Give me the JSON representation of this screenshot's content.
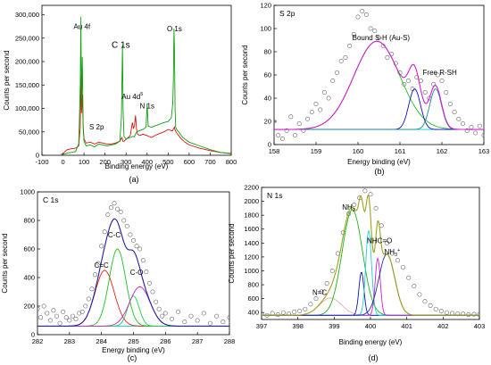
{
  "chart_data": [
    {
      "panel_label": "(a)",
      "type": "line",
      "title": "",
      "xlabel": "Binding energy (eV)",
      "ylabel": "Counts per second",
      "xlim": [
        -100,
        800
      ],
      "ylim": [
        0,
        320000
      ],
      "xticks": [
        "-100",
        "0",
        "100",
        "200",
        "300",
        "400",
        "500",
        "600",
        "700",
        "800"
      ],
      "yticks": [
        "0",
        "50,000",
        "100,000",
        "150,000",
        "200,000",
        "250,000",
        "300,000"
      ],
      "grid": false,
      "annotations": [
        {
          "text": "Au 4f",
          "x": 90,
          "y": 270000
        },
        {
          "text": "C 1s",
          "x": 275,
          "y": 230000
        },
        {
          "text": "Au 4d",
          "x": 330,
          "y": 120000,
          "sup": "5"
        },
        {
          "text": "N 1s",
          "x": 400,
          "y": 100000
        },
        {
          "text": "S 2p",
          "x": 160,
          "y": 55000
        },
        {
          "text": "O 1s",
          "x": 530,
          "y": 265000
        }
      ],
      "series": [
        {
          "color": "#e01010",
          "x": [
            -10,
            0,
            10,
            20,
            40,
            60,
            75,
            82,
            85,
            88,
            92,
            96,
            100,
            110,
            130,
            150,
            170,
            190,
            210,
            230,
            250,
            270,
            280,
            285,
            290,
            300,
            320,
            330,
            335,
            340,
            345,
            350,
            355,
            365,
            380,
            400,
            420,
            450,
            480,
            500,
            520,
            530,
            532,
            535,
            540,
            560,
            580,
            600,
            650,
            700,
            750,
            800
          ],
          "y": [
            2000,
            3000,
            8000,
            12000,
            14000,
            15000,
            20000,
            60000,
            170000,
            90000,
            130000,
            60000,
            35000,
            26000,
            28000,
            24000,
            28000,
            26000,
            24000,
            24000,
            26000,
            30000,
            38000,
            30000,
            30000,
            34000,
            42000,
            70000,
            58000,
            62000,
            85000,
            55000,
            45000,
            42000,
            45000,
            42000,
            38000,
            45000,
            50000,
            55000,
            52000,
            60000,
            55000,
            52000,
            48000,
            36000,
            28000,
            22000,
            15000,
            10000,
            6000,
            4000
          ]
        },
        {
          "color": "#10a010",
          "x": [
            -10,
            0,
            10,
            20,
            40,
            60,
            75,
            82,
            85,
            88,
            92,
            96,
            100,
            110,
            130,
            150,
            170,
            190,
            210,
            230,
            250,
            270,
            278,
            283,
            286,
            290,
            300,
            320,
            330,
            340,
            350,
            360,
            380,
            395,
            400,
            405,
            420,
            450,
            480,
            500,
            515,
            522,
            525,
            528,
            530,
            533,
            536,
            540,
            550,
            570,
            600,
            650,
            700,
            750,
            800
          ],
          "y": [
            0,
            2000,
            3000,
            5000,
            6000,
            8000,
            25000,
            150000,
            295000,
            100000,
            210000,
            60000,
            30000,
            20000,
            22000,
            18000,
            24000,
            22000,
            20000,
            22000,
            24000,
            30000,
            80000,
            235000,
            95000,
            40000,
            35000,
            38000,
            40000,
            40000,
            50000,
            52000,
            55000,
            60000,
            110000,
            62000,
            60000,
            65000,
            70000,
            72000,
            80000,
            110000,
            160000,
            270000,
            230000,
            100000,
            60000,
            55000,
            50000,
            38000,
            28000,
            20000,
            12000,
            6000,
            3000
          ]
        }
      ]
    },
    {
      "panel_label": "(b)",
      "type": "line",
      "title": "S 2p",
      "xlabel": "Energy binding (eV)",
      "ylabel": "Counts per second",
      "xlim": [
        158,
        163
      ],
      "ylim": [
        0,
        120
      ],
      "xticks": [
        "158",
        "159",
        "160",
        "161",
        "162",
        "163"
      ],
      "yticks": [
        "0",
        "20",
        "40",
        "60",
        "80",
        "100",
        "120"
      ],
      "grid": false,
      "annotations": [
        {
          "text": "Bound S-H  (Au-S)",
          "x": 160.55,
          "y": 90
        },
        {
          "text": "Free R-SH",
          "x": 161.95,
          "y": 60
        }
      ],
      "components": [
        {
          "name": "",
          "color": "#00d0d0",
          "type": "baseline",
          "value": 13
        },
        {
          "name": "",
          "color": "#20c020",
          "type": "gauss",
          "center": 160.45,
          "amp": 76,
          "sigma": 0.55,
          "base": 13
        },
        {
          "name": "",
          "color": "#1010c0",
          "type": "gauss",
          "center": 161.35,
          "amp": 35,
          "sigma": 0.14,
          "base": 13
        },
        {
          "name": "",
          "color": "#1a8a8a",
          "type": "gauss",
          "center": 161.85,
          "amp": 35,
          "sigma": 0.14,
          "base": 13
        },
        {
          "name": "",
          "color": "#d020d0",
          "type": "envelope"
        }
      ],
      "scatter": {
        "x": [
          158.0,
          158.1,
          158.2,
          158.3,
          158.4,
          158.5,
          158.6,
          158.7,
          158.8,
          158.9,
          159.0,
          159.1,
          159.2,
          159.3,
          159.4,
          159.5,
          159.6,
          159.7,
          159.8,
          159.9,
          160.0,
          160.1,
          160.2,
          160.3,
          160.4,
          160.5,
          160.6,
          160.7,
          160.8,
          160.9,
          161.0,
          161.1,
          161.2,
          161.3,
          161.4,
          161.5,
          161.6,
          161.7,
          161.8,
          161.9,
          162.0,
          162.1,
          162.2,
          162.3,
          162.4,
          162.5,
          162.6,
          162.7,
          162.8,
          162.9,
          163.0
        ],
        "y": [
          20,
          8,
          5,
          12,
          24,
          8,
          18,
          12,
          22,
          28,
          35,
          30,
          45,
          40,
          55,
          62,
          72,
          75,
          85,
          95,
          110,
          115,
          112,
          100,
          98,
          92,
          85,
          75,
          78,
          70,
          62,
          52,
          55,
          48,
          58,
          55,
          45,
          40,
          52,
          60,
          55,
          45,
          35,
          28,
          22,
          18,
          12,
          15,
          10,
          16,
          8
        ]
      }
    },
    {
      "panel_label": "(c)",
      "type": "line",
      "title": "C 1s",
      "xlabel": "Energy binding (eV)",
      "ylabel": "Counts per second",
      "xlim": [
        282,
        288
      ],
      "ylim": [
        0,
        1000
      ],
      "xticks": [
        "282",
        "283",
        "284",
        "285",
        "286",
        "287",
        "288"
      ],
      "yticks": [
        "0",
        "200",
        "400",
        "600",
        "800",
        "1000"
      ],
      "grid": false,
      "annotations": [
        {
          "text": "C=C",
          "x": 284.0,
          "y": 470
        },
        {
          "text": "C-C",
          "x": 284.4,
          "y": 680
        },
        {
          "text": "C-O",
          "x": 285.1,
          "y": 420
        }
      ],
      "components": [
        {
          "name": "",
          "color": "#00d0d0",
          "type": "baseline",
          "value": 60
        },
        {
          "name": "",
          "color": "#e02020",
          "type": "gauss",
          "center": 284.1,
          "amp": 390,
          "sigma": 0.3,
          "base": 60
        },
        {
          "name": "",
          "color": "#20c020",
          "type": "gauss",
          "center": 284.5,
          "amp": 540,
          "sigma": 0.26,
          "base": 60
        },
        {
          "name": "",
          "color": "#20d050",
          "type": "gauss",
          "center": 285.0,
          "amp": 210,
          "sigma": 0.18,
          "base": 60
        },
        {
          "name": "",
          "color": "#d020d0",
          "type": "gauss",
          "center": 285.2,
          "amp": 275,
          "sigma": 0.32,
          "base": 60
        },
        {
          "name": "",
          "color": "#2020a0",
          "type": "envelope"
        }
      ],
      "scatter": {
        "x": [
          282.0,
          282.1,
          282.2,
          282.3,
          282.4,
          282.5,
          282.6,
          282.7,
          282.8,
          282.9,
          283.0,
          283.1,
          283.2,
          283.3,
          283.4,
          283.5,
          283.6,
          283.7,
          283.8,
          283.9,
          284.0,
          284.1,
          284.2,
          284.3,
          284.4,
          284.5,
          284.6,
          284.7,
          284.8,
          284.9,
          285.0,
          285.1,
          285.2,
          285.3,
          285.4,
          285.5,
          285.6,
          285.7,
          285.8,
          285.9,
          286.0,
          286.2,
          286.4,
          286.6,
          286.8,
          287.0,
          287.2,
          287.4,
          287.6,
          287.8,
          288.0
        ],
        "y": [
          180,
          120,
          200,
          150,
          100,
          170,
          130,
          80,
          160,
          120,
          100,
          130,
          110,
          150,
          160,
          200,
          250,
          320,
          420,
          500,
          620,
          720,
          840,
          890,
          920,
          880,
          860,
          800,
          760,
          700,
          660,
          620,
          600,
          520,
          440,
          360,
          300,
          230,
          180,
          130,
          150,
          110,
          160,
          90,
          130,
          100,
          150,
          80,
          130,
          90,
          120
        ]
      }
    },
    {
      "panel_label": "(d)",
      "type": "line",
      "title": "N 1s",
      "xlabel": "Binding energy (eV)",
      "ylabel": "Counts per second",
      "xlim": [
        397,
        403
      ],
      "ylim": [
        300,
        2200
      ],
      "xticks": [
        "397",
        "398",
        "399",
        "400",
        "401",
        "402",
        "403"
      ],
      "yticks": [
        "400",
        "600",
        "800",
        "1000",
        "1200",
        "1400",
        "1600",
        "1800",
        "2000",
        "2200"
      ],
      "grid": false,
      "annotations": [
        {
          "text": "NH",
          "x": 399.4,
          "y": 1880,
          "sub": "2"
        },
        {
          "text": "NHC=O",
          "x": 400.25,
          "y": 1400
        },
        {
          "text": "NH",
          "x": 400.6,
          "y": 1240,
          "sup": "+",
          "sub": "3"
        },
        {
          "text": "N=C",
          "x": 398.6,
          "y": 650
        }
      ],
      "components": [
        {
          "name": "",
          "color": "#00d0d0",
          "type": "baseline",
          "value": 360
        },
        {
          "name": "",
          "color": "#e0b0b0",
          "type": "gauss",
          "center": 398.9,
          "amp": 250,
          "sigma": 0.3,
          "base": 360
        },
        {
          "name": "",
          "color": "#20b020",
          "type": "gauss",
          "center": 399.5,
          "amp": 1520,
          "sigma": 0.28,
          "base": 360
        },
        {
          "name": "",
          "color": "#1010c0",
          "type": "gauss",
          "center": 399.75,
          "amp": 620,
          "sigma": 0.07,
          "base": 360
        },
        {
          "name": "",
          "color": "#20d0d0",
          "type": "gauss",
          "center": 399.95,
          "amp": 1220,
          "sigma": 0.08,
          "base": 360
        },
        {
          "name": "",
          "color": "#d020d0",
          "type": "gauss",
          "center": 400.2,
          "amp": 820,
          "sigma": 0.07,
          "base": 360
        },
        {
          "name": "",
          "color": "#2030a0",
          "type": "gauss",
          "center": 400.45,
          "amp": 880,
          "sigma": 0.22,
          "base": 360
        },
        {
          "name": "",
          "color": "#a0a020",
          "type": "envelope"
        }
      ],
      "scatter": {
        "x": [
          397.0,
          397.15,
          397.3,
          397.45,
          397.6,
          397.75,
          397.9,
          398.05,
          398.2,
          398.35,
          398.5,
          398.65,
          398.8,
          398.95,
          399.1,
          399.25,
          399.4,
          399.55,
          399.7,
          399.85,
          400.0,
          400.15,
          400.3,
          400.45,
          400.6,
          400.75,
          400.9,
          401.05,
          401.2,
          401.35,
          401.5,
          401.65,
          401.8,
          401.95,
          402.1,
          402.25,
          402.4,
          402.55,
          402.7,
          402.85,
          403.0
        ],
        "y": [
          380,
          360,
          390,
          370,
          400,
          380,
          410,
          420,
          450,
          520,
          600,
          700,
          820,
          1000,
          1250,
          1550,
          1820,
          1950,
          2050,
          2150,
          2100,
          1900,
          1650,
          1400,
          1250,
          1150,
          1050,
          900,
          780,
          660,
          560,
          500,
          450,
          420,
          400,
          390,
          380,
          380,
          370,
          375,
          370
        ]
      }
    }
  ]
}
